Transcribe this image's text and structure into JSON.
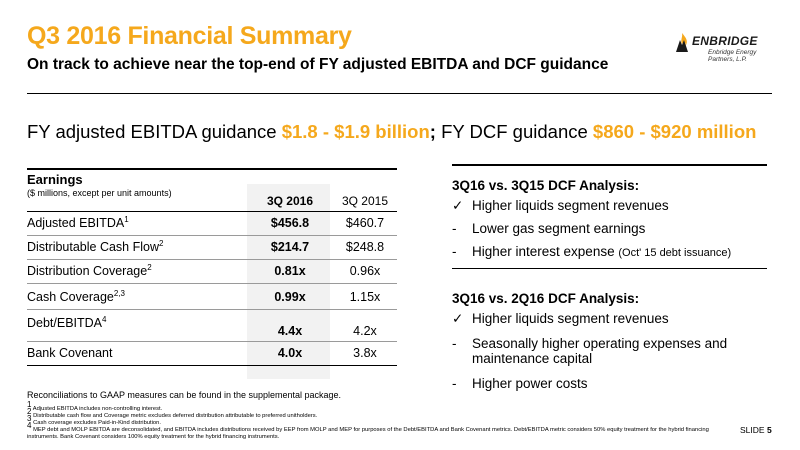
{
  "header": {
    "title": "Q3 2016 Financial Summary",
    "subtitle": "On track to achieve near the top-end of FY adjusted EBITDA and DCF guidance"
  },
  "logo": {
    "wordmark": "ENBRIDGE",
    "tagline": "Enbridge Energy Partners, L.P."
  },
  "headline": {
    "part1": "FY adjusted EBITDA guidance ",
    "value1": "$1.8 - $1.9 billion",
    "sep": ";",
    "part2": " FY DCF guidance ",
    "value2": "$860 - $920 million"
  },
  "earnings_table": {
    "title": "Earnings",
    "subtitle": "($ millions, except per unit amounts)",
    "columns": [
      "3Q 2016",
      "3Q 2015"
    ],
    "rows": [
      {
        "label": "Adjusted EBITDA",
        "sup": "1",
        "v1": "$456.8",
        "v2": "$460.7"
      },
      {
        "label": "Distributable Cash Flow",
        "sup": "2",
        "v1": "$214.7",
        "v2": "$248.8"
      },
      {
        "label": "Distribution Coverage",
        "sup": "2",
        "v1": "0.81x",
        "v2": "0.96x"
      },
      {
        "label": "Cash Coverage",
        "sup": "2,3",
        "v1": "0.99x",
        "v2": "1.15x"
      },
      {
        "label": "Debt/EBITDA",
        "sup": "4",
        "v1": "4.4x",
        "v2": "4.2x"
      },
      {
        "label": "Bank Covenant",
        "sup": "",
        "v1": "4.0x",
        "v2": "3.8x"
      }
    ]
  },
  "analysis": [
    {
      "title": "3Q16 vs. 3Q15 DCF Analysis:",
      "items": [
        {
          "marker": "✓",
          "text": "Higher liquids segment revenues",
          "note": ""
        },
        {
          "marker": "-",
          "text": "Lower gas segment earnings",
          "note": ""
        },
        {
          "marker": "-",
          "text": "Higher interest expense ",
          "note": "(Oct' 15 debt issuance)"
        }
      ]
    },
    {
      "title": "3Q16 vs. 2Q16 DCF Analysis:",
      "items": [
        {
          "marker": "✓",
          "text": "Higher liquids segment revenues",
          "line2": ""
        },
        {
          "marker": "-",
          "text": "Seasonally higher operating expenses and",
          "line2": "maintenance capital"
        },
        {
          "marker": "-",
          "text": "Higher power costs",
          "line2": ""
        }
      ]
    }
  ],
  "reconciliation_note": "Reconciliations to GAAP measures can be found in the supplemental package.",
  "footnotes": [
    {
      "num": "1",
      "text": " Adjusted EBITDA includes non-controlling interest."
    },
    {
      "num": "2",
      "text": " Distributable cash flow and Coverage metric excludes deferred distribution attributable to preferred unitholders."
    },
    {
      "num": "3",
      "text": " Cash coverage excludes Paid-in-Kind distribution."
    },
    {
      "num": "4",
      "text": " MEP debt and MOLP EBITDA are deconsolidated, and EBITDA includes distributions received by EEP from MOLP and MEP for purposes of the Debt/EBITDA and Bank Covenant metrics. Debt/EBITDA metric considers 50% equity treatment for the hybrid financing instruments. Bank Covenant considers 100% equity treatment for the hybrid financing instruments."
    }
  ],
  "slide": {
    "label": "SLIDE ",
    "number": "5"
  },
  "colors": {
    "accent": "#f5a81c",
    "text": "#000000"
  }
}
